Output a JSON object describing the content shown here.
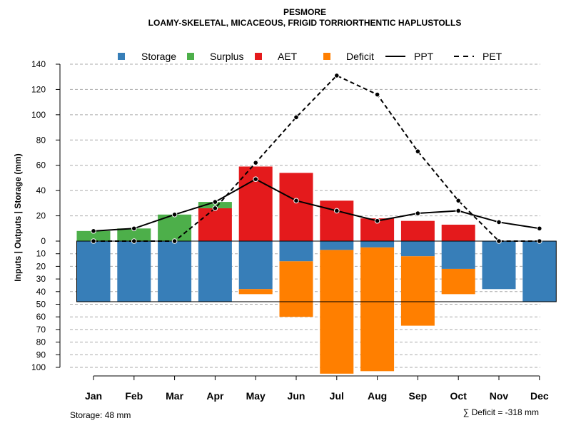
{
  "chart_data": {
    "type": "bar",
    "title": "PESMORE",
    "subtitle": "LOAMY-SKELETAL, MICACEOUS, FRIGID TORRIORTHENTIC HAPLUSTOLLS",
    "ylabel": "Inputs | Outputs | Storage    (mm)",
    "categories": [
      "Jan",
      "Feb",
      "Mar",
      "Apr",
      "May",
      "Jun",
      "Jul",
      "Aug",
      "Sep",
      "Oct",
      "Nov",
      "Dec"
    ],
    "yticks_upper": [
      0,
      20,
      40,
      60,
      80,
      100,
      120,
      140
    ],
    "yticks_lower": [
      10,
      20,
      30,
      40,
      50,
      60,
      70,
      80,
      90,
      100
    ],
    "ylim_upper": [
      0,
      140
    ],
    "ylim_lower": [
      0,
      100
    ],
    "series": [
      {
        "name": "Storage",
        "color": "#377EB8",
        "values": [
          48,
          48,
          48,
          48,
          38,
          16,
          7,
          5,
          12,
          22,
          38,
          48
        ]
      },
      {
        "name": "Surplus",
        "color": "#4DAF4A",
        "values": [
          8,
          10,
          21,
          5,
          0,
          0,
          0,
          0,
          0,
          0,
          0,
          0
        ]
      },
      {
        "name": "AET",
        "color": "#E41A1C",
        "values": [
          0,
          0,
          0,
          26,
          59,
          54,
          32,
          18,
          16,
          13,
          0,
          0
        ]
      },
      {
        "name": "Deficit",
        "color": "#FF7F00",
        "values": [
          0,
          0,
          0,
          0,
          4,
          44,
          98,
          98,
          55,
          20,
          0,
          0
        ]
      },
      {
        "name": "PPT",
        "style": "solid",
        "values": [
          8,
          10,
          21,
          31,
          49,
          32,
          24,
          16,
          22,
          24,
          15,
          10
        ]
      },
      {
        "name": "PET",
        "style": "dashed",
        "values": [
          0,
          0,
          0,
          26,
          62,
          98,
          131,
          116,
          71,
          32,
          0,
          0
        ]
      }
    ],
    "max_storage": 48,
    "grid": true,
    "legend_position": "top",
    "footer": {
      "storage_text": "Storage: 48 mm",
      "deficit_text": "∑ Deficit = -318 mm"
    }
  }
}
